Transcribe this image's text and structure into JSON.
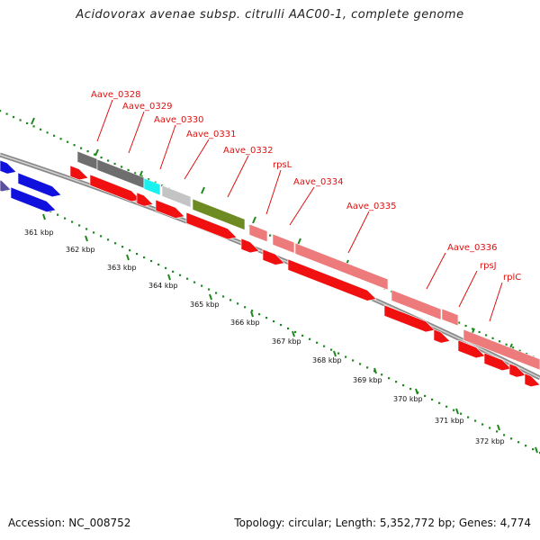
{
  "title": "Acidovorax avenae subsp. citrulli AAC00-1, complete genome",
  "footer": {
    "accession": "Accession: NC_008752",
    "stats": "Topology: circular; Length: 5,352,772 bp; Genes: 4,774"
  },
  "colors": {
    "cds": "#f01010",
    "gene_dark": "#6e6e6e",
    "gene_cyan": "#19f1f1",
    "gene_silver": "#c4c4c4",
    "gene_olive": "#6d8b22",
    "gene_salmon": "#ee7b7b",
    "prior_genes": "#1111dd",
    "backbone": "#8a8a8a",
    "tick_minor": "#1e8a1e",
    "label_red": "#dd1111"
  },
  "gene_labels": [
    "Aave_0328",
    "Aave_0329",
    "Aave_0330",
    "Aave_0331",
    "Aave_0332",
    "rpsL",
    "Aave_0334",
    "Aave_0335",
    "Aave_0336",
    "rpsJ",
    "rplC"
  ],
  "kbp_labels": [
    "361 kbp",
    "362 kbp",
    "363 kbp",
    "364 kbp",
    "365 kbp",
    "366 kbp",
    "367 kbp",
    "368 kbp",
    "369 kbp",
    "370 kbp",
    "371 kbp",
    "372 kbp"
  ]
}
